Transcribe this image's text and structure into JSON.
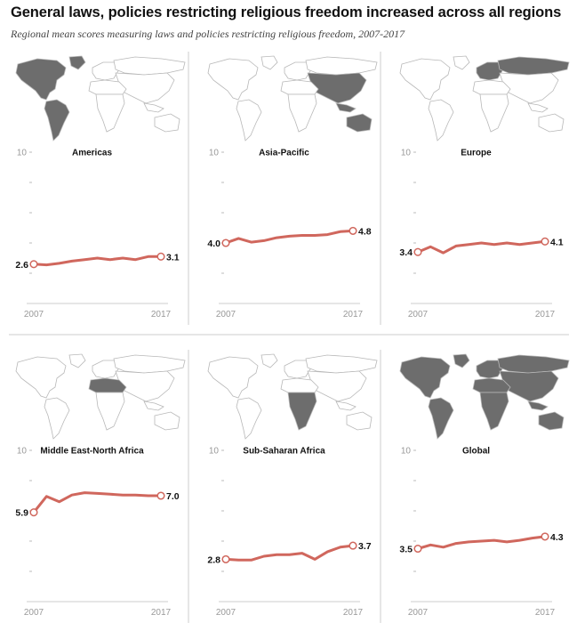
{
  "title": "General laws, policies restricting religious freedom increased across all regions",
  "subtitle": "Regional mean scores measuring laws and policies restricting religious freedom, 2007-2017",
  "colors": {
    "line": "#d0675d",
    "map_land": "#ffffff",
    "map_highlight": "#6d6d6d",
    "map_border": "#b8b8b8",
    "divider": "#cccccc",
    "tick": "#bbbbbb"
  },
  "chart_data": [
    {
      "type": "line",
      "title": "Americas",
      "map_highlight": "americas",
      "ylim": [
        0,
        10
      ],
      "y_top_label": "10",
      "x_start_label": "2007",
      "x_end_label": "2017",
      "x": [
        2007,
        2008,
        2009,
        2010,
        2011,
        2012,
        2013,
        2014,
        2015,
        2016,
        2017
      ],
      "values": [
        2.6,
        2.55,
        2.65,
        2.8,
        2.9,
        3.0,
        2.9,
        3.0,
        2.9,
        3.1,
        3.1
      ],
      "start_label": "2.6",
      "end_label": "3.1"
    },
    {
      "type": "line",
      "title": "Asia-Pacific",
      "map_highlight": "asia-pacific",
      "ylim": [
        0,
        10
      ],
      "y_top_label": "10",
      "x_start_label": "2007",
      "x_end_label": "2017",
      "x": [
        2007,
        2008,
        2009,
        2010,
        2011,
        2012,
        2013,
        2014,
        2015,
        2016,
        2017
      ],
      "values": [
        4.0,
        4.3,
        4.05,
        4.15,
        4.35,
        4.45,
        4.5,
        4.5,
        4.55,
        4.75,
        4.8
      ],
      "start_label": "4.0",
      "end_label": "4.8"
    },
    {
      "type": "line",
      "title": "Europe",
      "map_highlight": "europe",
      "ylim": [
        0,
        10
      ],
      "y_top_label": "10",
      "x_start_label": "2007",
      "x_end_label": "2017",
      "x": [
        2007,
        2008,
        2009,
        2010,
        2011,
        2012,
        2013,
        2014,
        2015,
        2016,
        2017
      ],
      "values": [
        3.4,
        3.75,
        3.35,
        3.8,
        3.9,
        4.0,
        3.9,
        4.0,
        3.9,
        4.0,
        4.1
      ],
      "start_label": "3.4",
      "end_label": "4.1"
    },
    {
      "type": "line",
      "title": "Middle East-North Africa",
      "map_highlight": "mena",
      "ylim": [
        0,
        10
      ],
      "y_top_label": "10",
      "x_start_label": "2007",
      "x_end_label": "2017",
      "x": [
        2007,
        2008,
        2009,
        2010,
        2011,
        2012,
        2013,
        2014,
        2015,
        2016,
        2017
      ],
      "values": [
        5.9,
        6.95,
        6.6,
        7.05,
        7.2,
        7.15,
        7.1,
        7.05,
        7.05,
        7.0,
        7.0
      ],
      "start_label": "5.9",
      "end_label": "7.0"
    },
    {
      "type": "line",
      "title": "Sub-Saharan Africa",
      "map_highlight": "sub-saharan-africa",
      "ylim": [
        0,
        10
      ],
      "y_top_label": "10",
      "x_start_label": "2007",
      "x_end_label": "2017",
      "x": [
        2007,
        2008,
        2009,
        2010,
        2011,
        2012,
        2013,
        2014,
        2015,
        2016,
        2017
      ],
      "values": [
        2.8,
        2.75,
        2.75,
        3.0,
        3.1,
        3.1,
        3.2,
        2.8,
        3.3,
        3.6,
        3.7
      ],
      "start_label": "2.8",
      "end_label": "3.7"
    },
    {
      "type": "line",
      "title": "Global",
      "map_highlight": "global",
      "ylim": [
        0,
        10
      ],
      "y_top_label": "10",
      "x_start_label": "2007",
      "x_end_label": "2017",
      "x": [
        2007,
        2008,
        2009,
        2010,
        2011,
        2012,
        2013,
        2014,
        2015,
        2016,
        2017
      ],
      "values": [
        3.5,
        3.75,
        3.6,
        3.85,
        3.95,
        4.0,
        4.05,
        3.95,
        4.05,
        4.2,
        4.3
      ],
      "start_label": "3.5",
      "end_label": "4.3"
    }
  ]
}
